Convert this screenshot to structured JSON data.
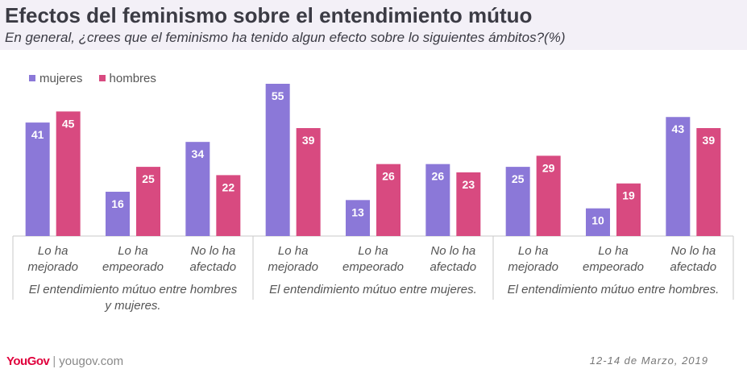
{
  "title": "Efectos del feminismo sobre el entendimiento mútuo",
  "subtitle": "En general, ¿crees que el feminismo ha tenido algun efecto sobre lo siguientes ámbitos?(%)",
  "footer": {
    "logo": "YouGov",
    "separator": "|",
    "url": "yougov.com",
    "date": "12-14 de Marzo, 2019"
  },
  "colors": {
    "mujeres": "#8b78d8",
    "hombres": "#d84a80",
    "header_bg": "#f3f0f7"
  },
  "chart_data": {
    "type": "bar",
    "ylim": [
      0,
      60
    ],
    "legend_position": "top-left",
    "grid": false,
    "series": [
      {
        "name": "mujeres",
        "color": "#8b78d8"
      },
      {
        "name": "hombres",
        "color": "#d84a80"
      }
    ],
    "groups": [
      {
        "label": "El entendimiento mútuo entre hombres y mujeres.",
        "label_lines": [
          "El entendimiento mútuo entre hombres",
          "y mujeres."
        ],
        "categories": [
          {
            "label_lines": [
              "Lo ha",
              "mejorado"
            ],
            "values": [
              41,
              45
            ]
          },
          {
            "label_lines": [
              "Lo ha",
              "empeorado"
            ],
            "values": [
              16,
              25
            ]
          },
          {
            "label_lines": [
              "No lo ha",
              "afectado"
            ],
            "values": [
              34,
              22
            ]
          }
        ]
      },
      {
        "label": "El entendimiento mútuo entre mujeres.",
        "label_lines": [
          "El entendimiento mútuo entre mujeres."
        ],
        "categories": [
          {
            "label_lines": [
              "Lo ha",
              "mejorado"
            ],
            "values": [
              55,
              39
            ]
          },
          {
            "label_lines": [
              "Lo ha",
              "empeorado"
            ],
            "values": [
              13,
              26
            ]
          },
          {
            "label_lines": [
              "No lo ha",
              "afectado"
            ],
            "values": [
              26,
              23
            ]
          }
        ]
      },
      {
        "label": "El entendimiento mútuo entre hombres.",
        "label_lines": [
          "El entendimiento mútuo entre hombres."
        ],
        "categories": [
          {
            "label_lines": [
              "Lo ha",
              "mejorado"
            ],
            "values": [
              25,
              29
            ]
          },
          {
            "label_lines": [
              "Lo ha",
              "empeorado"
            ],
            "values": [
              10,
              19
            ]
          },
          {
            "label_lines": [
              "No lo ha",
              "afectado"
            ],
            "values": [
              43,
              39
            ]
          }
        ]
      }
    ]
  }
}
